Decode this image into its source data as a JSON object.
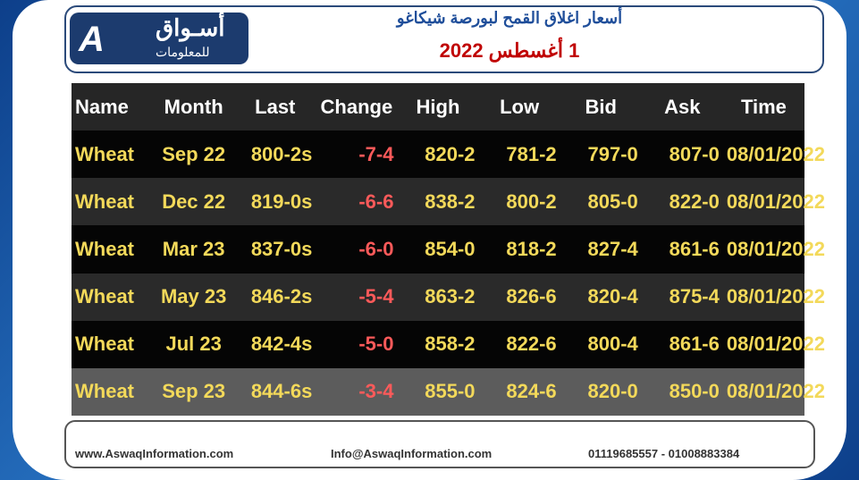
{
  "header": {
    "logo_name": "أسـواق",
    "logo_sub": "للمعلومات",
    "title": "أسعار اغلاق القمح لبورصة شيكاغو",
    "date": "1 أغسطس 2022"
  },
  "table": {
    "columns": [
      "Name",
      "Month",
      "Last",
      "Change",
      "High",
      "Low",
      "Bid",
      "Ask",
      "Time"
    ],
    "rows": [
      [
        "Wheat",
        "Sep 22",
        "800-2s",
        "-7-4",
        "820-2",
        "781-2",
        "797-0",
        "807-0",
        "08/01/2022"
      ],
      [
        "Wheat",
        "Dec 22",
        "819-0s",
        "-6-6",
        "838-2",
        "800-2",
        "805-0",
        "822-0",
        "08/01/2022"
      ],
      [
        "Wheat",
        "Mar 23",
        "837-0s",
        "-6-0",
        "854-0",
        "818-2",
        "827-4",
        "861-6",
        "08/01/2022"
      ],
      [
        "Wheat",
        "May 23",
        "846-2s",
        "-5-4",
        "863-2",
        "826-6",
        "820-4",
        "875-4",
        "08/01/2022"
      ],
      [
        "Wheat",
        "Jul 23",
        "842-4s",
        "-5-0",
        "858-2",
        "822-6",
        "800-4",
        "861-6",
        "08/01/2022"
      ],
      [
        "Wheat",
        "Sep 23",
        "844-6s",
        "-3-4",
        "855-0",
        "824-6",
        "820-0",
        "850-0",
        "08/01/2022"
      ]
    ]
  },
  "footer": {
    "website": "www.AswaqInformation.com",
    "email": "Info@AswaqInformation.com",
    "phones": "01119685557 - 01008883384"
  }
}
